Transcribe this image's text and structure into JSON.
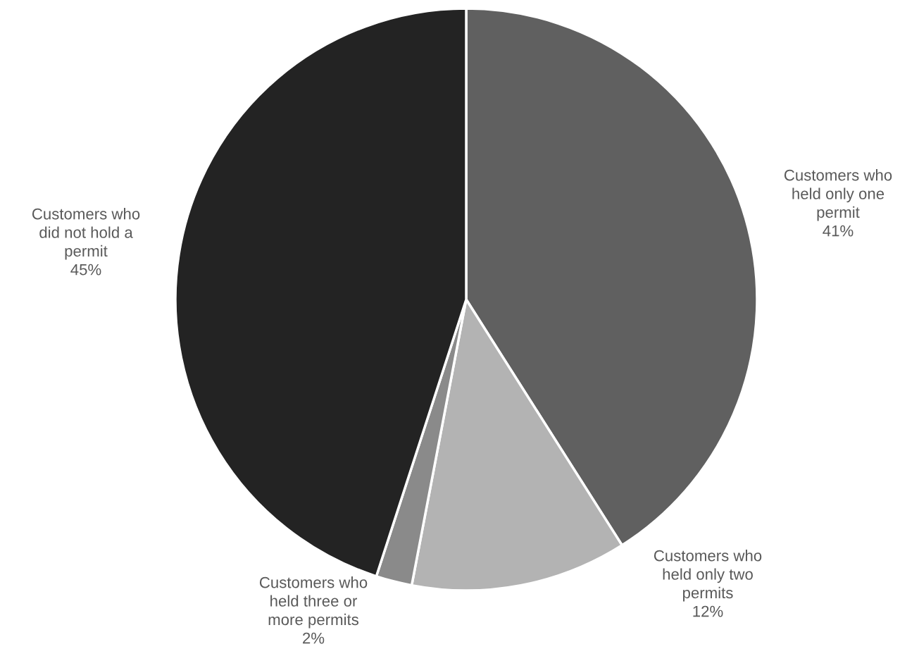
{
  "chart_data": {
    "type": "pie",
    "categories": [
      "Customers who\nheld only one\npermit",
      "Customers who\nheld only two\npermits",
      "Customers who\nheld three or\nmore permits",
      "Customers who\ndid not hold a\npermit"
    ],
    "values": [
      41,
      12,
      2,
      45
    ],
    "value_labels": [
      "41%",
      "12%",
      "2%",
      "45%"
    ],
    "colors": [
      "#606060",
      "#b3b3b3",
      "#8a8a8a",
      "#232323"
    ],
    "legend": false
  }
}
